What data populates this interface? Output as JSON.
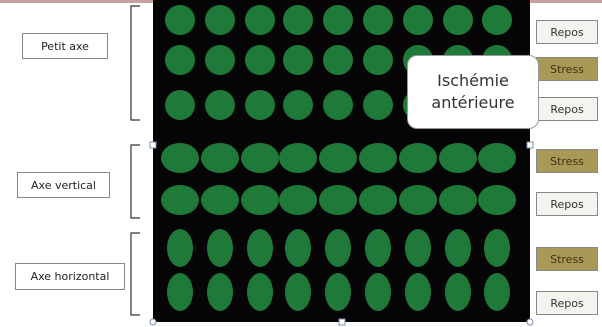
{
  "labels_left": [
    "Petit axe",
    "Axe vertical",
    "Axe horizontal"
  ],
  "labels_right": [
    "Repos",
    "Stress",
    "Repos",
    "Stress",
    "Repos",
    "Stress",
    "Repos"
  ],
  "callout": [
    "Ischémie",
    "antérieure"
  ]
}
